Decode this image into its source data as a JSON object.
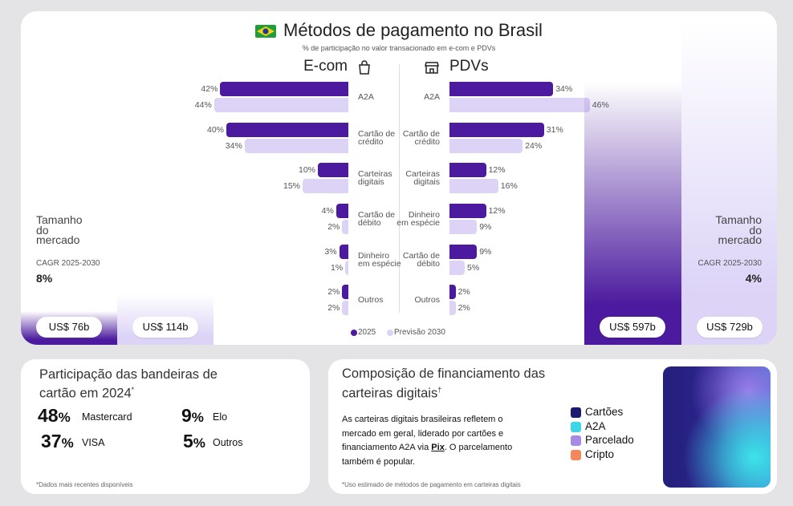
{
  "header": {
    "title": "Métodos de pagamento no Brasil",
    "subtitle": "% de participação no valor transacionado em e-com e PDVs"
  },
  "chart_data": [
    {
      "type": "bar",
      "title": "E-com",
      "categories": [
        "A2A",
        "Cartão de crédito",
        "Carteiras digitais",
        "Cartão de débito",
        "Dinheiro em espécie",
        "Outros"
      ],
      "series": [
        {
          "name": "2025",
          "color": "#4b1a9e",
          "values": [
            42,
            40,
            10,
            4,
            3,
            2
          ],
          "value_labels": [
            "42%",
            "40%",
            "10%",
            "4%",
            "3%",
            "2%"
          ]
        },
        {
          "name": "Previsão 2030",
          "color": "#dcd3f7",
          "values": [
            44,
            34,
            15,
            2,
            1,
            2
          ],
          "value_labels": [
            "44%",
            "34%",
            "15%",
            "2%",
            "1%",
            "2%"
          ]
        }
      ],
      "market": {
        "label": "Tamanho do mercado",
        "cagr_label": "CAGR 2025-2030",
        "cagr": "8%",
        "values": [
          76,
          114
        ],
        "value_labels": [
          "US$ 76b",
          "US$ 114b"
        ]
      }
    },
    {
      "type": "bar",
      "title": "PDVs",
      "categories": [
        "A2A",
        "Cartão de crédito",
        "Carteiras digitais",
        "Dinheiro em espécie",
        "Cartão de débito",
        "Outros"
      ],
      "series": [
        {
          "color": "#4b1a9e",
          "values": [
            34,
            31,
            12,
            12,
            9,
            2
          ],
          "value_labels": [
            "34%",
            "31%",
            "12%",
            "12%",
            "9%",
            "2%"
          ]
        },
        {
          "color": "#dcd3f7",
          "values": [
            46,
            24,
            16,
            9,
            5,
            2
          ],
          "value_labels": [
            "46%",
            "24%",
            "16%",
            "9%",
            "5%",
            "2%"
          ]
        }
      ],
      "market": {
        "label": "Tamanho do mercado",
        "cagr_label": "CAGR 2025-2030",
        "cagr": "4%",
        "values": [
          597,
          729
        ],
        "value_labels": [
          "US$ 597b",
          "US$ 729b"
        ]
      }
    }
  ],
  "card_brands": {
    "title": "Participação das bandeiras de cartão em 2024",
    "title_mark": "*",
    "items": [
      {
        "value": "48",
        "unit": "%",
        "name": "Mastercard"
      },
      {
        "value": "37",
        "unit": "%",
        "name": "VISA"
      },
      {
        "value": "9",
        "unit": "%",
        "name": "Elo"
      },
      {
        "value": "5",
        "unit": "%",
        "name": "Outros"
      }
    ],
    "footnote": "*Dados mais recentes disponíveis"
  },
  "wallet_funding": {
    "title": "Composição de financiamento das carteiras digitais",
    "title_mark": "†",
    "text": [
      "As carteiras digitais brasileiras refletem o mercado em geral, liderado por cartões e financiamento A2A via ",
      "Pix",
      ". O parcelamento também é popular."
    ],
    "legend": [
      {
        "name": "Cartões",
        "color": "#1c1a6e"
      },
      {
        "name": "A2A",
        "color": "#3dd6e8"
      },
      {
        "name": "Parcelado",
        "color": "#a58be6"
      },
      {
        "name": "Cripto",
        "color": "#f5875f"
      }
    ],
    "footnote": "*Uso estimado de métodos de pagamento em carteiras digitais"
  }
}
